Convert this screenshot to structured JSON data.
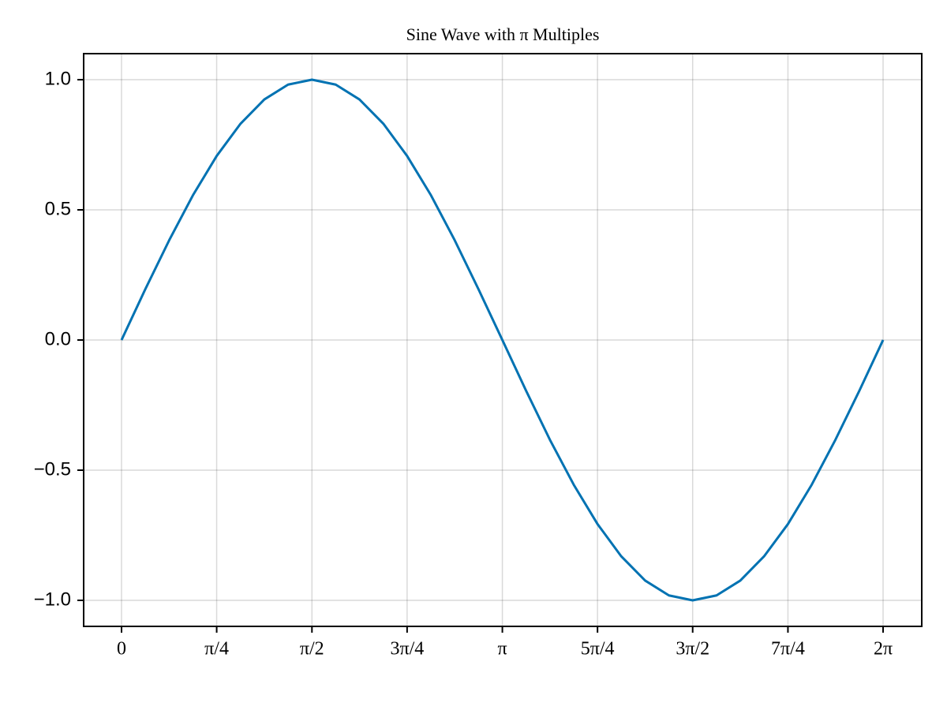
{
  "chart_data": {
    "type": "line",
    "title": "Sine Wave with π Multiples",
    "x": [
      0,
      0.196,
      0.393,
      0.589,
      0.785,
      0.982,
      1.178,
      1.374,
      1.571,
      1.767,
      1.963,
      2.16,
      2.356,
      2.553,
      2.749,
      2.945,
      3.142,
      3.338,
      3.534,
      3.731,
      3.927,
      4.123,
      4.32,
      4.516,
      4.712,
      4.909,
      5.105,
      5.301,
      5.498,
      5.694,
      5.89,
      6.087,
      6.283
    ],
    "series": [
      {
        "color": "#0072b2",
        "values": [
          0,
          0.195,
          0.383,
          0.556,
          0.707,
          0.831,
          0.924,
          0.981,
          1,
          0.981,
          0.924,
          0.831,
          0.707,
          0.556,
          0.383,
          0.195,
          0,
          -0.195,
          -0.383,
          -0.556,
          -0.707,
          -0.831,
          -0.924,
          -0.981,
          -1,
          -0.981,
          -0.924,
          -0.831,
          -0.707,
          -0.556,
          -0.383,
          -0.195,
          0
        ]
      }
    ],
    "xlim": [
      -0.3125,
      6.602
    ],
    "ylim": [
      -1.1,
      1.1
    ],
    "xticks": [
      0,
      {
        "value": 0.785,
        "label": "π/4"
      },
      {
        "value": 1.571,
        "label": "π/2"
      },
      {
        "value": 2.356,
        "label": "3π/4"
      },
      {
        "value": 3.142,
        "label": "π"
      },
      {
        "value": 3.927,
        "label": "5π/4"
      },
      {
        "value": 4.712,
        "label": "3π/2"
      },
      {
        "value": 5.498,
        "label": "7π/4"
      },
      {
        "value": 6.283,
        "label": "2π"
      }
    ],
    "yticks": [
      {
        "value": -1,
        "label": "−1.0"
      },
      {
        "value": -0.5,
        "label": "−0.5"
      },
      {
        "value": 0,
        "label": "0.0"
      },
      0.5,
      {
        "value": 1,
        "label": "1.0"
      }
    ],
    "grid": true
  }
}
